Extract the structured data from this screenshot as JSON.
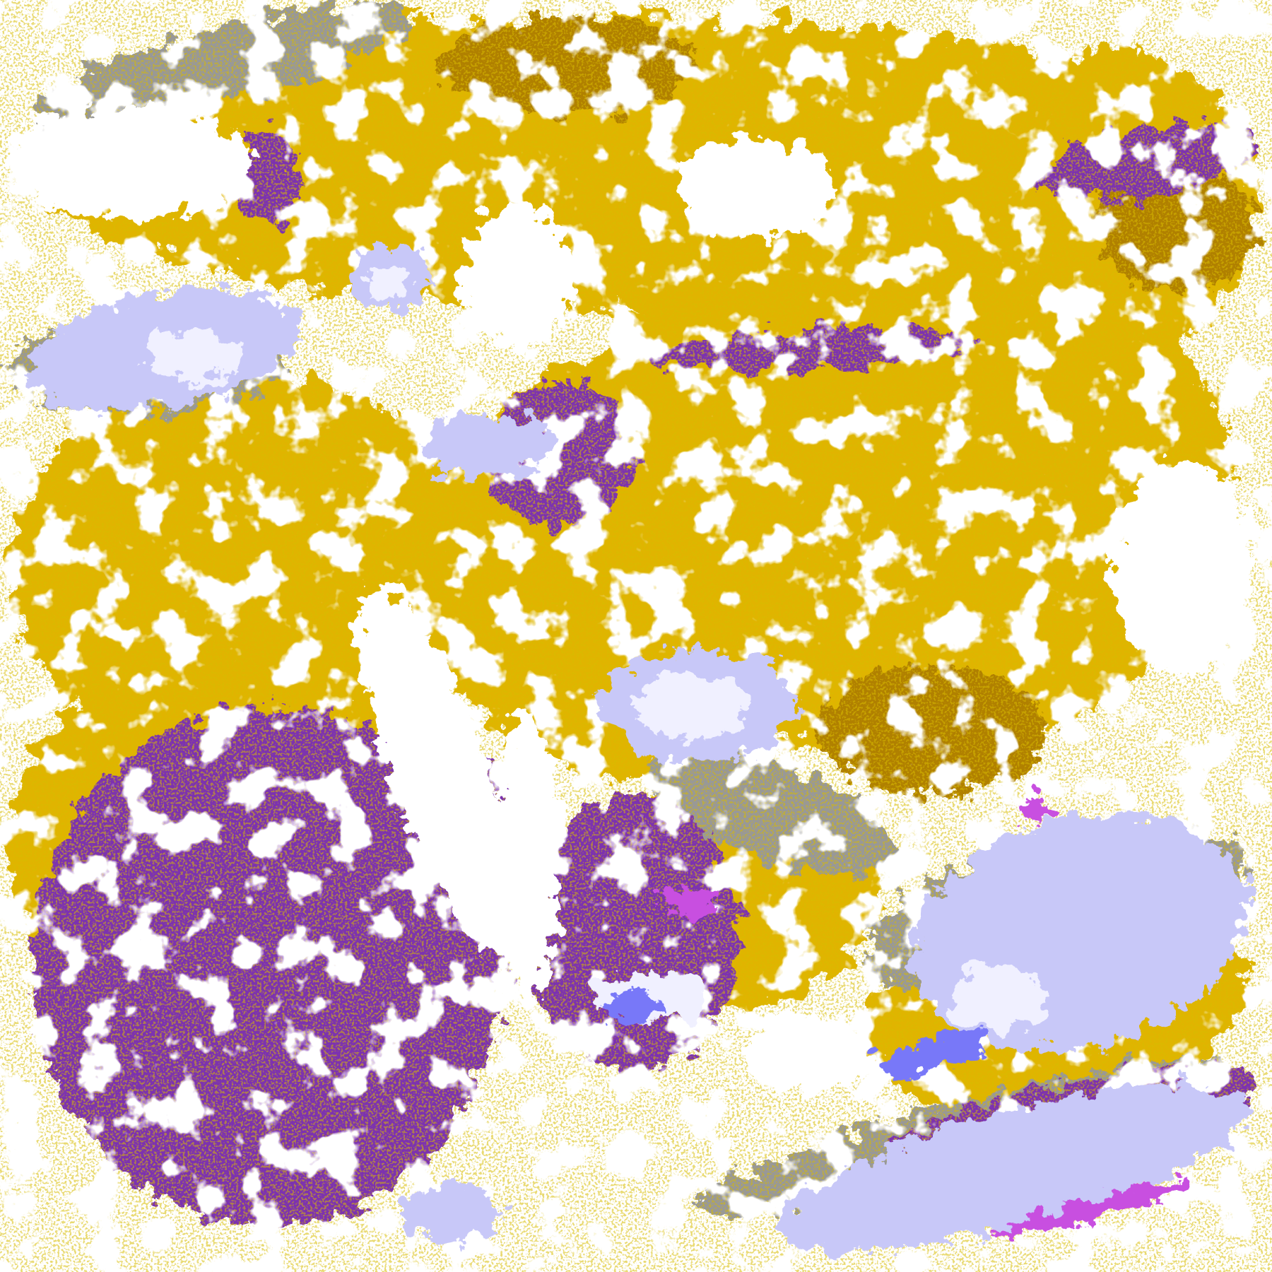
{
  "map": {
    "palette": {
      "clear": "#ffffff",
      "gold": "#e0b400",
      "dark_gold": "#b08000",
      "purple": "#7b30b0",
      "magenta": "#c850e0",
      "blue": "#7878f8",
      "lavender": "#c8c8f8",
      "pale": "#f0f0ff",
      "gray": "#989898",
      "light_gray": "#c0c0c0"
    }
  }
}
